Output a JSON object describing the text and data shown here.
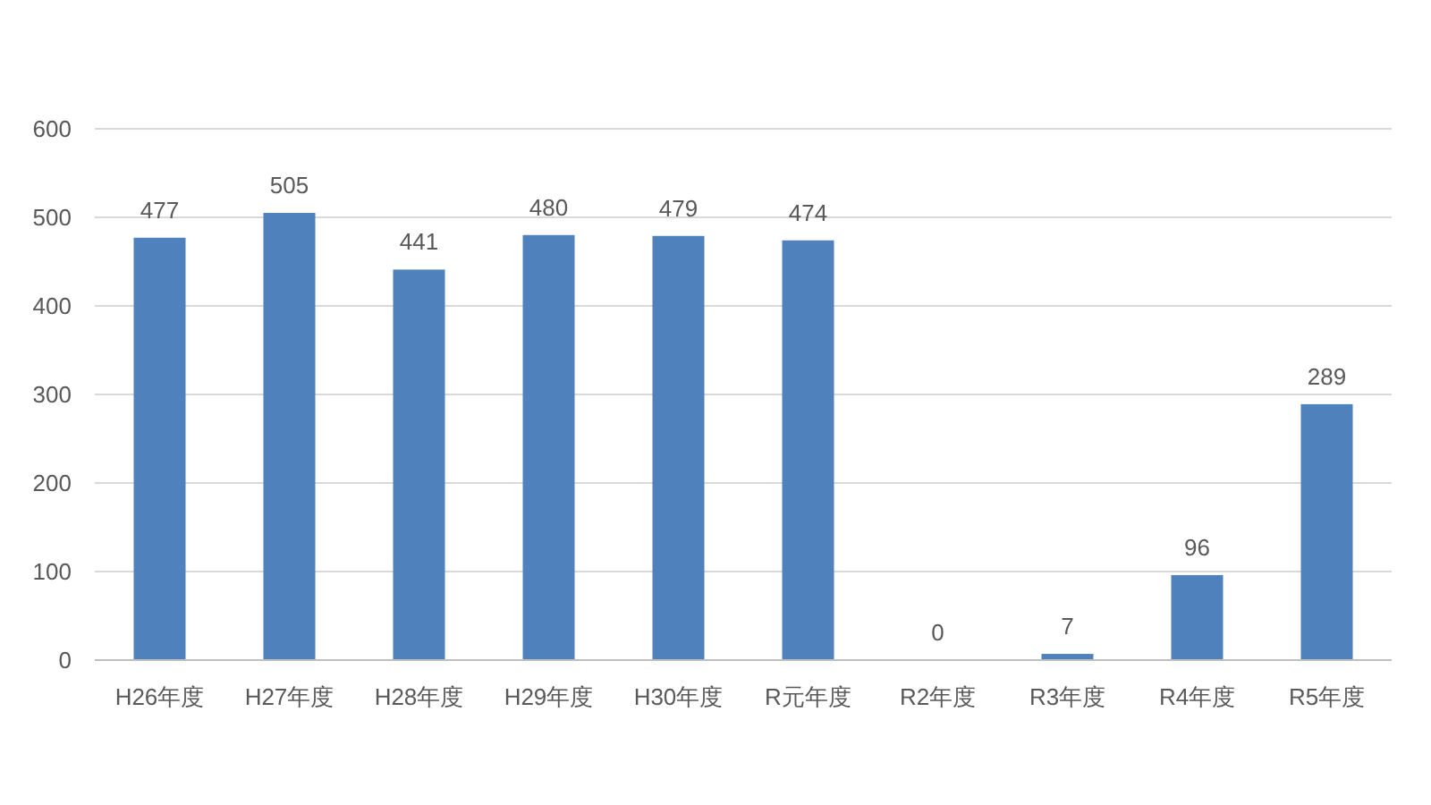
{
  "chart_data": {
    "type": "bar",
    "categories": [
      "H26年度",
      "H27年度",
      "H28年度",
      "H29年度",
      "H30年度",
      "R元年度",
      "R2年度",
      "R3年度",
      "R4年度",
      "R5年度"
    ],
    "values": [
      477,
      505,
      441,
      480,
      479,
      474,
      0,
      7,
      96,
      289
    ],
    "color": "#4f81bd",
    "ylim": [
      0,
      600
    ],
    "yticks": [
      0,
      100,
      200,
      300,
      400,
      500,
      600
    ],
    "grid": "y",
    "data_labels": true
  }
}
